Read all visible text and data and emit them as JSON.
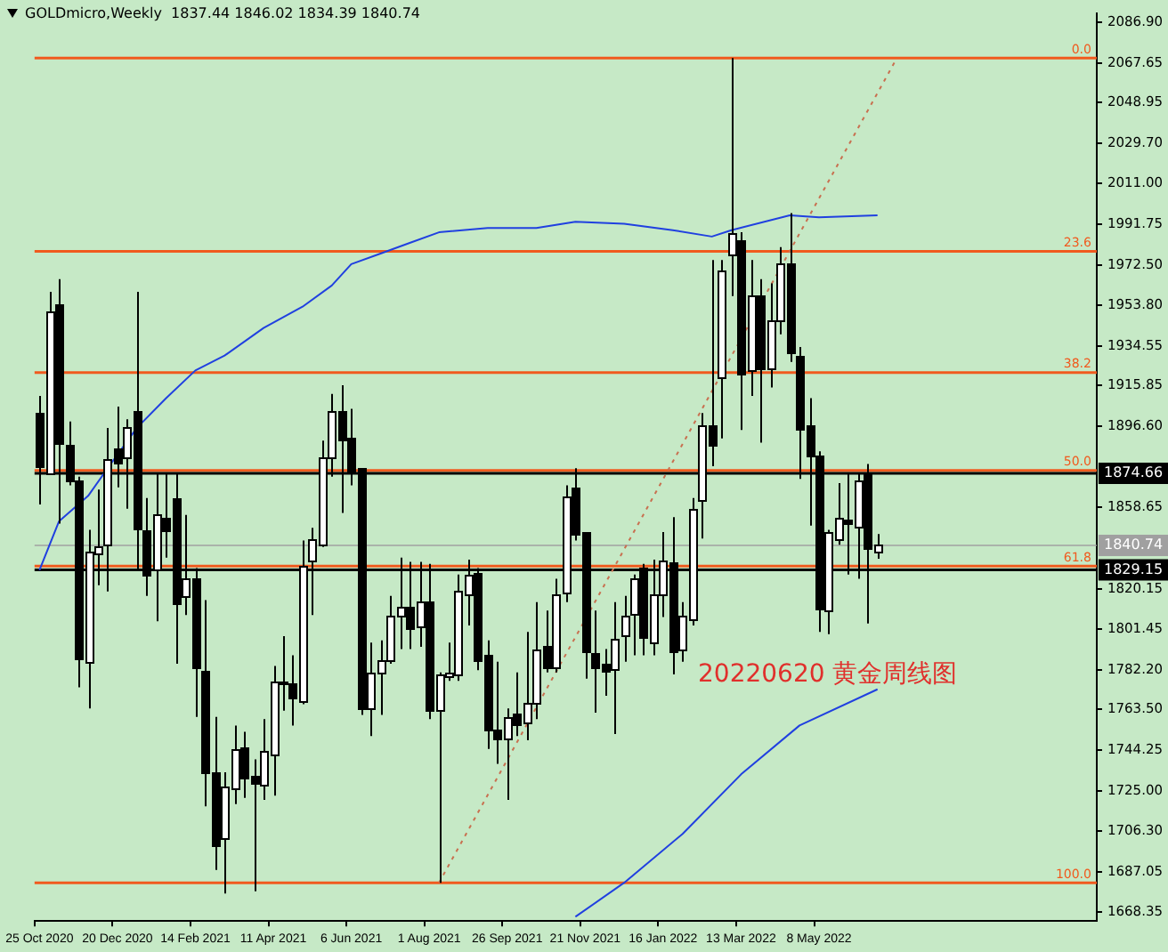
{
  "chart_data": {
    "type": "candlestick",
    "title": "GOLDmicro,Weekly  1837.44 1846.02 1834.39 1840.74",
    "annotations": [
      "20220620 黄金周线图",
      {
        "text": "0.0",
        "y": 2070
      },
      {
        "text": "23.6",
        "y": 1979
      },
      {
        "text": "38.2",
        "y": 1922
      },
      {
        "text": "50.0",
        "y": 1876
      },
      {
        "text": "61.8",
        "y": 1831
      },
      {
        "text": "100.0",
        "y": 1682
      }
    ],
    "colors": [
      "#000000",
      "#ffffff",
      "#000000",
      "#000000",
      "#000000",
      "#ffffff",
      "#ffffff",
      "#ffffff",
      "#000000",
      "#ffffff",
      "#000000",
      "#000000",
      "#ffffff",
      "#000000",
      "#000000",
      "#ffffff",
      "#000000",
      "#000000",
      "#000000",
      "#ffffff",
      "#ffffff",
      "#000000",
      "#000000",
      "#ffffff",
      "#ffffff",
      "#000000",
      "#000000",
      "#ffffff",
      "#ffffff",
      "#ffffff",
      "#ffffff",
      "#000000",
      "#000000",
      "#000000",
      "#ffffff",
      "#ffffff",
      "#ffffff",
      "#ffffff",
      "#000000",
      "#ffffff",
      "#000000",
      "#ffffff",
      "#ffffff",
      "#ffffff",
      "#ffffff",
      "#000000",
      "#000000",
      "#000000",
      "#ffffff",
      "#000000",
      "#ffffff",
      "#ffffff",
      "#000000",
      "#ffffff",
      "#ffffff",
      "#000000",
      "#000000",
      "#000000",
      "#000000",
      "#ffffff",
      "#ffffff",
      "#ffffff",
      "#000000",
      "#ffffff",
      "#ffffff",
      "#000000",
      "#ffffff",
      "#ffffff",
      "#ffffff",
      "#000000",
      "#ffffff",
      "#ffffff",
      "#000000",
      "#ffffff",
      "#000000",
      "#ffffff",
      "#ffffff",
      "#000000",
      "#000000",
      "#000000",
      "#000000",
      "#ffffff",
      "#ffffff",
      "#000000",
      "#ffffff",
      "#000000",
      "#ffffff",
      null,
      null,
      null,
      null,
      null,
      null,
      null,
      null,
      null,
      null,
      null,
      null,
      null,
      null,
      null,
      null,
      null,
      null,
      null,
      null,
      null,
      null
    ],
    "legend": false,
    "grid": false,
    "marker": "none",
    "categories": [
      "25 Oct 2020",
      null,
      null,
      null,
      null,
      null,
      null,
      null,
      "20 Dec 2020",
      null,
      null,
      null,
      null,
      null,
      null,
      null,
      "14 Feb 2021",
      null,
      null,
      null,
      null,
      null,
      null,
      null,
      "11 Apr 2021",
      null,
      null,
      null,
      null,
      null,
      null,
      null,
      "6 Jun 2021",
      null,
      null,
      null,
      null,
      null,
      null,
      null,
      "1 Aug 2021",
      null,
      null,
      null,
      null,
      null,
      null,
      null,
      "26 Sep 2021",
      null,
      null,
      null,
      null,
      null,
      null,
      null,
      "21 Nov 2021",
      null,
      null,
      null,
      null,
      null,
      null,
      null,
      "16 Jan 2022",
      null,
      null,
      null,
      null,
      null,
      null,
      null,
      "13 Mar 2022",
      null,
      null,
      null,
      null,
      null,
      null,
      null,
      "8 May 2022",
      null,
      null,
      null,
      null,
      null,
      null,
      null,
      null,
      null,
      null,
      null,
      null,
      null,
      null,
      null,
      null,
      null,
      null,
      null,
      null,
      null,
      null,
      null,
      null,
      null,
      null,
      null,
      null
    ],
    "ylim": [
      1664,
      2091
    ],
    "yticks": [
      {
        "value": 2086.9,
        "label": "2086.90"
      },
      {
        "value": 2067.65,
        "label": "2067.65"
      },
      {
        "value": 2048.95,
        "label": "2048.95"
      },
      {
        "value": 2029.7,
        "label": "2029.70"
      },
      {
        "value": 2011,
        "label": "2011.00"
      },
      {
        "value": 1991.75,
        "label": "1991.75"
      },
      {
        "value": 1972.5,
        "label": "1972.50"
      },
      {
        "value": 1953.8,
        "label": "1953.80"
      },
      {
        "value": 1934.55,
        "label": "1934.55"
      },
      {
        "value": 1915.85,
        "label": "1915.85"
      },
      {
        "value": 1896.6,
        "label": "1896.60"
      },
      {
        "value": 1858.65,
        "label": "1858.65"
      },
      {
        "value": 1820.15,
        "label": "1820.15"
      },
      {
        "value": 1801.45,
        "label": "1801.45"
      },
      {
        "value": 1782.2,
        "label": "1782.20"
      },
      {
        "value": 1763.5,
        "label": "1763.50"
      },
      {
        "value": 1744.25,
        "label": "1744.25"
      },
      {
        "value": 1725,
        "label": "1725.00"
      },
      {
        "value": 1706.3,
        "label": "1706.30"
      },
      {
        "value": 1687.05,
        "label": "1687.05"
      },
      {
        "value": 1668.35,
        "label": "1668.35"
      }
    ],
    "ref_lines": [
      {
        "axis": "y",
        "value": 2070,
        "color": "#f05a1e"
      },
      {
        "axis": "y",
        "value": 1979,
        "color": "#f05a1e"
      },
      {
        "axis": "y",
        "value": 1922,
        "color": "#f05a1e"
      },
      {
        "axis": "y",
        "value": 1876,
        "color": "#f05a1e"
      },
      {
        "axis": "y",
        "value": 1831,
        "color": "#f05a1e"
      },
      {
        "axis": "y",
        "value": 1682,
        "color": "#f05a1e"
      },
      {
        "axis": "y",
        "value": 1840.74,
        "label": "1840.74",
        "color": "#a0a0a0"
      },
      {
        "axis": "y",
        "value": 1874.66,
        "label": "1874.66",
        "color": "#000000"
      },
      {
        "axis": "y",
        "value": 1829.15,
        "label": "1829.15",
        "color": "#000000"
      }
    ],
    "series": [
      {
        "type": "line",
        "color": "#2040e0",
        "line_style": "solid",
        "values": [
          1829,
          null,
          1852,
          null,
          null,
          1864,
          null,
          1877,
          null,
          null,
          1896,
          null,
          null,
          1910,
          null,
          null,
          1923,
          null,
          null,
          1930,
          null,
          null,
          null,
          1943,
          null,
          null,
          null,
          1953,
          null,
          null,
          1963,
          null,
          1973,
          null,
          null,
          1978,
          null,
          null,
          1983,
          null,
          null,
          1988,
          null,
          null,
          null,
          null,
          1990,
          null,
          null,
          null,
          null,
          1990,
          null,
          null,
          null,
          1993,
          null,
          null,
          null,
          null,
          1992,
          null,
          null,
          null,
          null,
          1989,
          null,
          null,
          null,
          1986,
          null,
          1989,
          null,
          null,
          null,
          null,
          null,
          1996,
          null,
          null,
          1995,
          null,
          null,
          null,
          null,
          null,
          1996,
          null,
          null,
          null,
          null,
          null,
          null,
          null,
          null,
          null,
          null,
          null,
          null,
          null,
          null,
          null,
          null,
          null,
          null,
          null,
          null,
          null,
          null
        ]
      },
      {
        "type": "line",
        "color": "#2040e0",
        "line_style": "solid",
        "values": [
          null,
          null,
          null,
          null,
          null,
          null,
          null,
          null,
          null,
          null,
          null,
          null,
          null,
          null,
          null,
          null,
          null,
          null,
          null,
          null,
          null,
          null,
          null,
          null,
          null,
          null,
          null,
          null,
          null,
          null,
          null,
          null,
          null,
          null,
          null,
          null,
          null,
          null,
          null,
          null,
          null,
          null,
          null,
          null,
          null,
          null,
          null,
          null,
          null,
          null,
          null,
          null,
          null,
          null,
          null,
          1666,
          null,
          null,
          null,
          null,
          1682,
          null,
          null,
          null,
          null,
          null,
          1705,
          null,
          null,
          null,
          null,
          null,
          1733,
          null,
          null,
          null,
          null,
          null,
          1756,
          null,
          null,
          null,
          null,
          null,
          null,
          null,
          1773,
          null,
          null,
          null,
          null,
          null,
          null,
          null,
          null,
          null,
          null,
          null,
          null,
          null,
          null,
          null,
          null,
          null,
          null,
          null,
          null,
          null,
          null
        ]
      },
      {
        "type": "line",
        "color": "#c87050",
        "line_style": "dotted",
        "values": [
          null,
          null,
          null,
          null,
          null,
          null,
          null,
          null,
          null,
          null,
          null,
          null,
          null,
          null,
          null,
          null,
          null,
          null,
          null,
          null,
          null,
          null,
          null,
          null,
          null,
          null,
          null,
          null,
          null,
          null,
          null,
          null,
          null,
          null,
          null,
          null,
          null,
          null,
          null,
          null,
          null,
          1682,
          null,
          null,
          null,
          null,
          null,
          null,
          null,
          null,
          null,
          null,
          null,
          null,
          null,
          null,
          null,
          null,
          null,
          null,
          null,
          null,
          null,
          null,
          null,
          null,
          null,
          null,
          null,
          null,
          null,
          null,
          null,
          null,
          null,
          null,
          null,
          null,
          null,
          null,
          null,
          null,
          null,
          null,
          null,
          null,
          null,
          null,
          2070,
          null,
          null,
          null,
          null,
          null,
          null,
          null,
          null,
          null,
          null,
          null,
          null,
          null,
          null,
          null,
          null,
          null,
          null,
          null,
          null
        ]
      }
    ],
    "ohlc": [
      [
        1903,
        1911,
        1860,
        1878
      ],
      [
        1875,
        1960,
        1874,
        1951
      ],
      [
        1954,
        1966,
        1851,
        1889
      ],
      [
        1888,
        1899,
        1869,
        1871
      ],
      [
        1871,
        1873,
        1774,
        1787
      ],
      [
        1786,
        1848,
        1764,
        1838
      ],
      [
        1837,
        1867,
        1822,
        1840
      ],
      [
        1841,
        1896,
        1819,
        1881
      ],
      [
        1886,
        1906,
        1868,
        1879
      ],
      [
        1882,
        1900,
        1858,
        1896
      ],
      [
        1904,
        1960,
        1829,
        1849
      ],
      [
        1848,
        1863,
        1817,
        1827
      ],
      [
        1829,
        1875,
        1805,
        1855
      ],
      [
        1854,
        1875,
        1835,
        1848
      ],
      [
        1863,
        1875,
        1785,
        1814
      ],
      [
        1817,
        1855,
        1808,
        1825
      ],
      [
        1825,
        1830,
        1760,
        1783
      ],
      [
        1782,
        1815,
        1718,
        1734
      ],
      [
        1734,
        1760,
        1688,
        1700
      ],
      [
        1703,
        1734,
        1677,
        1727
      ],
      [
        1727,
        1756,
        1719,
        1745
      ],
      [
        1746,
        1753,
        1722,
        1732
      ],
      [
        1732,
        1740,
        1678,
        1729
      ],
      [
        1728,
        1759,
        1721,
        1744
      ],
      [
        1743,
        1784,
        1723,
        1777
      ],
      [
        1777,
        1798,
        1763,
        1776
      ],
      [
        1776,
        1789,
        1756,
        1769
      ],
      [
        1767,
        1843,
        1766,
        1831
      ],
      [
        1834,
        1849,
        1808,
        1844
      ],
      [
        1841,
        1890,
        1840,
        1882
      ],
      [
        1882,
        1912,
        1873,
        1904
      ],
      [
        1904,
        1916,
        1856,
        1891
      ],
      [
        1891,
        1905,
        1869,
        1875
      ],
      [
        1877,
        1877,
        1761,
        1764
      ],
      [
        1764,
        1795,
        1751,
        1781
      ],
      [
        1781,
        1796,
        1761,
        1787
      ],
      [
        1787,
        1817,
        1785,
        1808
      ],
      [
        1808,
        1835,
        1792,
        1812
      ],
      [
        1812,
        1833,
        1792,
        1802
      ],
      [
        1802,
        1833,
        1793,
        1814
      ],
      [
        1814,
        1832,
        1759,
        1763
      ],
      [
        1763,
        1781,
        1682,
        1780
      ],
      [
        1779,
        1795,
        1777,
        1781
      ],
      [
        1780,
        1827,
        1777,
        1819
      ],
      [
        1818,
        1834,
        1803,
        1827
      ],
      [
        1828,
        1830,
        1782,
        1787
      ],
      [
        1789,
        1796,
        1745,
        1754
      ],
      [
        1754,
        1786,
        1738,
        1750
      ],
      [
        1750,
        1764,
        1721,
        1760
      ],
      [
        1762,
        1781,
        1751,
        1757
      ],
      [
        1758,
        1800,
        1749,
        1767
      ],
      [
        1767,
        1814,
        1759,
        1792
      ],
      [
        1793,
        1810,
        1781,
        1783
      ],
      [
        1784,
        1825,
        1781,
        1818
      ],
      [
        1819,
        1869,
        1814,
        1864
      ],
      [
        1868,
        1877,
        1843,
        1846
      ],
      [
        1847,
        1847,
        1778,
        1791
      ],
      [
        1790,
        1810,
        1762,
        1783
      ],
      [
        1785,
        1792,
        1770,
        1782
      ],
      [
        1783,
        1814,
        1752,
        1797
      ],
      [
        1799,
        1817,
        1786,
        1808
      ],
      [
        1808,
        1827,
        1789,
        1825
      ],
      [
        1830,
        1832,
        1789,
        1797
      ],
      [
        1795,
        1834,
        1789,
        1818
      ],
      [
        1818,
        1847,
        1807,
        1834
      ],
      [
        1833,
        1854,
        1780,
        1791
      ],
      [
        1792,
        1814,
        1786,
        1808
      ],
      [
        1806,
        1863,
        1803,
        1858
      ],
      [
        1862,
        1903,
        1844,
        1897
      ],
      [
        1897,
        1975,
        1878,
        1888
      ],
      [
        1920,
        1975,
        1891,
        1970
      ],
      [
        1978,
        2070,
        1958,
        1988
      ],
      [
        1984,
        1988,
        1895,
        1921
      ],
      [
        1923,
        1975,
        1911,
        1958
      ],
      [
        1958,
        1966,
        1889,
        1924
      ],
      [
        1924,
        1964,
        1915,
        1947
      ],
      [
        1946,
        1981,
        1940,
        1973
      ],
      [
        1973,
        1997,
        1927,
        1931
      ],
      [
        1930,
        1934,
        1872,
        1896
      ],
      [
        1897,
        1910,
        1850,
        1883
      ],
      [
        1883,
        1885,
        1800,
        1811
      ],
      [
        1810,
        1848,
        1799,
        1847
      ],
      [
        1844,
        1870,
        1841,
        1854
      ],
      [
        1853,
        1875,
        1827,
        1851
      ],
      [
        1849,
        1875,
        1825,
        1871
      ],
      [
        1875,
        1879,
        1804,
        1840
      ],
      [
        1837.44,
        1846.02,
        1834.39,
        1840.74
      ],
      null,
      null,
      null,
      null,
      null,
      null,
      null,
      null,
      null,
      null,
      null,
      null,
      null,
      null,
      null,
      null,
      null,
      null,
      null,
      null,
      null,
      null
    ]
  }
}
